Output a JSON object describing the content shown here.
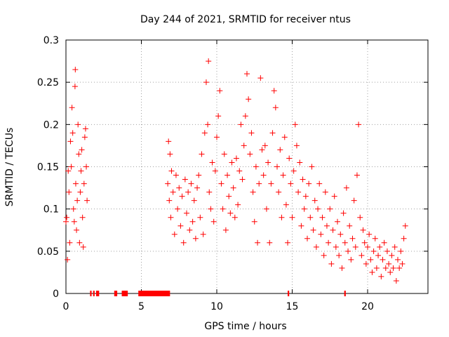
{
  "chart_data": {
    "type": "scatter",
    "title": "Day 244 of 2021, SRMTID for receiver ntus",
    "xlabel": "GPS time / hours",
    "ylabel": "SRMTID / TECUs",
    "xlim": [
      0,
      24
    ],
    "ylim": [
      0,
      0.3
    ],
    "x_ticks": [
      0,
      5,
      10,
      15,
      20
    ],
    "x_tick_labels": [
      "0",
      "5",
      "10",
      "15",
      "20"
    ],
    "y_ticks": [
      0,
      0.05,
      0.1,
      0.15,
      0.2,
      0.25,
      0.3
    ],
    "y_tick_labels": [
      "0",
      "0.05",
      "0.1",
      "0.15",
      "0.2",
      "0.25",
      "0.3"
    ],
    "grid": true,
    "marker": "+",
    "color": "#ff0000",
    "series": [
      {
        "name": "SRMTID",
        "points": [
          [
            0.0,
            0.085
          ],
          [
            0.05,
            0.09
          ],
          [
            0.1,
            0.04
          ],
          [
            0.15,
            0.145
          ],
          [
            0.2,
            0.12
          ],
          [
            0.25,
            0.06
          ],
          [
            0.3,
            0.18
          ],
          [
            0.35,
            0.15
          ],
          [
            0.4,
            0.22
          ],
          [
            0.45,
            0.19
          ],
          [
            0.5,
            0.1
          ],
          [
            0.55,
            0.085
          ],
          [
            0.6,
            0.245
          ],
          [
            0.62,
            0.265
          ],
          [
            0.65,
            0.13
          ],
          [
            0.7,
            0.075
          ],
          [
            0.75,
            0.11
          ],
          [
            0.8,
            0.2
          ],
          [
            0.85,
            0.165
          ],
          [
            0.9,
            0.06
          ],
          [
            0.95,
            0.12
          ],
          [
            1.0,
            0.145
          ],
          [
            1.05,
            0.17
          ],
          [
            1.1,
            0.09
          ],
          [
            1.15,
            0.055
          ],
          [
            1.2,
            0.13
          ],
          [
            1.25,
            0.185
          ],
          [
            1.3,
            0.195
          ],
          [
            1.35,
            0.15
          ],
          [
            1.4,
            0.11
          ],
          [
            6.75,
            0.13
          ],
          [
            6.8,
            0.18
          ],
          [
            6.85,
            0.11
          ],
          [
            6.9,
            0.165
          ],
          [
            6.95,
            0.09
          ],
          [
            7.0,
            0.145
          ],
          [
            7.1,
            0.12
          ],
          [
            7.2,
            0.07
          ],
          [
            7.3,
            0.14
          ],
          [
            7.4,
            0.1
          ],
          [
            7.5,
            0.125
          ],
          [
            7.6,
            0.08
          ],
          [
            7.7,
            0.115
          ],
          [
            7.8,
            0.06
          ],
          [
            7.9,
            0.135
          ],
          [
            8.0,
            0.095
          ],
          [
            8.1,
            0.12
          ],
          [
            8.2,
            0.075
          ],
          [
            8.3,
            0.13
          ],
          [
            8.4,
            0.085
          ],
          [
            8.5,
            0.11
          ],
          [
            8.6,
            0.065
          ],
          [
            8.7,
            0.125
          ],
          [
            8.8,
            0.14
          ],
          [
            8.9,
            0.09
          ],
          [
            9.0,
            0.165
          ],
          [
            9.1,
            0.07
          ],
          [
            9.2,
            0.19
          ],
          [
            9.3,
            0.25
          ],
          [
            9.4,
            0.2
          ],
          [
            9.45,
            0.275
          ],
          [
            9.5,
            0.12
          ],
          [
            9.6,
            0.1
          ],
          [
            9.7,
            0.155
          ],
          [
            9.8,
            0.085
          ],
          [
            9.9,
            0.145
          ],
          [
            10.0,
            0.185
          ],
          [
            10.1,
            0.21
          ],
          [
            10.2,
            0.24
          ],
          [
            10.3,
            0.13
          ],
          [
            10.4,
            0.1
          ],
          [
            10.5,
            0.165
          ],
          [
            10.6,
            0.075
          ],
          [
            10.7,
            0.14
          ],
          [
            10.8,
            0.115
          ],
          [
            10.9,
            0.095
          ],
          [
            11.0,
            0.155
          ],
          [
            11.1,
            0.125
          ],
          [
            11.2,
            0.09
          ],
          [
            11.3,
            0.16
          ],
          [
            11.4,
            0.105
          ],
          [
            11.5,
            0.145
          ],
          [
            11.6,
            0.2
          ],
          [
            11.7,
            0.135
          ],
          [
            11.8,
            0.175
          ],
          [
            11.9,
            0.21
          ],
          [
            12.0,
            0.26
          ],
          [
            12.1,
            0.23
          ],
          [
            12.2,
            0.165
          ],
          [
            12.3,
            0.19
          ],
          [
            12.4,
            0.12
          ],
          [
            12.5,
            0.085
          ],
          [
            12.6,
            0.15
          ],
          [
            12.7,
            0.06
          ],
          [
            12.8,
            0.13
          ],
          [
            12.9,
            0.255
          ],
          [
            13.0,
            0.17
          ],
          [
            13.1,
            0.14
          ],
          [
            13.2,
            0.175
          ],
          [
            13.3,
            0.1
          ],
          [
            13.4,
            0.155
          ],
          [
            13.5,
            0.06
          ],
          [
            13.6,
            0.13
          ],
          [
            13.7,
            0.19
          ],
          [
            13.8,
            0.24
          ],
          [
            13.9,
            0.22
          ],
          [
            14.0,
            0.15
          ],
          [
            14.1,
            0.12
          ],
          [
            14.2,
            0.17
          ],
          [
            14.3,
            0.09
          ],
          [
            14.4,
            0.14
          ],
          [
            14.5,
            0.185
          ],
          [
            14.6,
            0.105
          ],
          [
            14.7,
            0.06
          ],
          [
            14.8,
            0.16
          ],
          [
            14.9,
            0.13
          ],
          [
            15.0,
            0.09
          ],
          [
            15.1,
            0.145
          ],
          [
            15.2,
            0.2
          ],
          [
            15.3,
            0.175
          ],
          [
            15.4,
            0.12
          ],
          [
            15.5,
            0.155
          ],
          [
            15.6,
            0.08
          ],
          [
            15.7,
            0.135
          ],
          [
            15.8,
            0.1
          ],
          [
            15.9,
            0.115
          ],
          [
            16.0,
            0.065
          ],
          [
            16.1,
            0.13
          ],
          [
            16.2,
            0.09
          ],
          [
            16.3,
            0.15
          ],
          [
            16.4,
            0.075
          ],
          [
            16.5,
            0.11
          ],
          [
            16.6,
            0.055
          ],
          [
            16.7,
            0.1
          ],
          [
            16.8,
            0.13
          ],
          [
            16.9,
            0.07
          ],
          [
            17.0,
            0.09
          ],
          [
            17.1,
            0.045
          ],
          [
            17.2,
            0.12
          ],
          [
            17.3,
            0.08
          ],
          [
            17.4,
            0.06
          ],
          [
            17.5,
            0.1
          ],
          [
            17.6,
            0.035
          ],
          [
            17.7,
            0.075
          ],
          [
            17.8,
            0.115
          ],
          [
            17.9,
            0.055
          ],
          [
            18.0,
            0.085
          ],
          [
            18.1,
            0.045
          ],
          [
            18.2,
            0.07
          ],
          [
            18.3,
            0.03
          ],
          [
            18.4,
            0.095
          ],
          [
            18.5,
            0.06
          ],
          [
            18.6,
            0.125
          ],
          [
            18.7,
            0.05
          ],
          [
            18.8,
            0.08
          ],
          [
            18.9,
            0.04
          ],
          [
            19.0,
            0.065
          ],
          [
            19.1,
            0.11
          ],
          [
            19.2,
            0.055
          ],
          [
            19.3,
            0.14
          ],
          [
            19.4,
            0.2
          ],
          [
            19.5,
            0.09
          ],
          [
            19.6,
            0.045
          ],
          [
            19.7,
            0.075
          ],
          [
            19.8,
            0.06
          ],
          [
            19.9,
            0.035
          ],
          [
            20.0,
            0.055
          ],
          [
            20.1,
            0.07
          ],
          [
            20.2,
            0.04
          ],
          [
            20.3,
            0.025
          ],
          [
            20.4,
            0.05
          ],
          [
            20.5,
            0.065
          ],
          [
            20.6,
            0.03
          ],
          [
            20.7,
            0.045
          ],
          [
            20.8,
            0.055
          ],
          [
            20.9,
            0.02
          ],
          [
            21.0,
            0.04
          ],
          [
            21.1,
            0.06
          ],
          [
            21.2,
            0.03
          ],
          [
            21.3,
            0.05
          ],
          [
            21.4,
            0.035
          ],
          [
            21.5,
            0.025
          ],
          [
            21.6,
            0.045
          ],
          [
            21.7,
            0.03
          ],
          [
            21.8,
            0.055
          ],
          [
            21.9,
            0.015
          ],
          [
            22.0,
            0.04
          ],
          [
            22.1,
            0.03
          ],
          [
            22.2,
            0.05
          ],
          [
            22.3,
            0.035
          ],
          [
            22.4,
            0.065
          ],
          [
            22.5,
            0.08
          ]
        ]
      }
    ],
    "zero_line_segments": [
      [
        1.6,
        1.7
      ],
      [
        1.8,
        1.9
      ],
      [
        2.0,
        2.2
      ],
      [
        3.2,
        3.4
      ],
      [
        3.7,
        4.1
      ],
      [
        4.8,
        6.9
      ],
      [
        14.7,
        14.8
      ],
      [
        18.45,
        18.55
      ]
    ]
  }
}
